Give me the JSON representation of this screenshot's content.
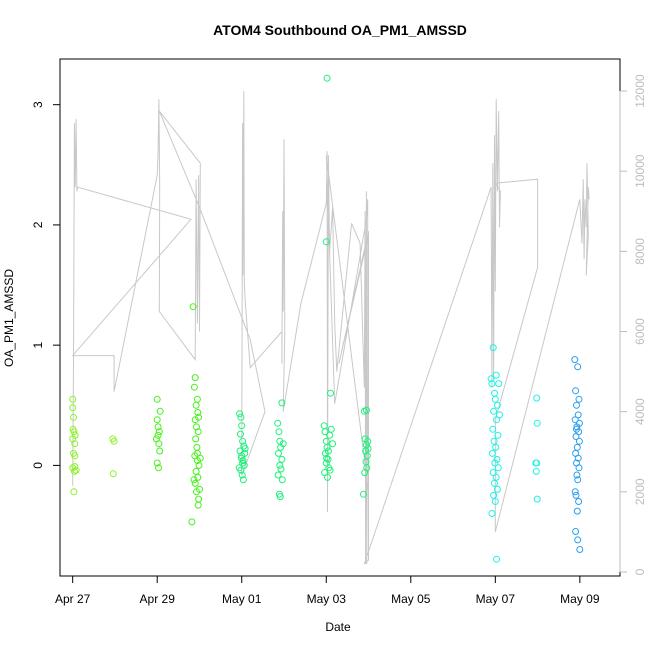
{
  "chart_data": {
    "type": "scatter",
    "title": "ATOM4 Southbound OA_PM1_AMSSD",
    "xlabel": "Date",
    "ylabel": "OA_PM1_AMSSD",
    "y2label": "",
    "xlim": [
      -0.3,
      12.95
    ],
    "ylim": [
      -0.92,
      3.38
    ],
    "y2lim": [
      -100,
      12800
    ],
    "x_ticks": [
      {
        "value": 0,
        "label": "Apr 27"
      },
      {
        "value": 2,
        "label": "Apr 29"
      },
      {
        "value": 4,
        "label": "May 01"
      },
      {
        "value": 6,
        "label": "May 03"
      },
      {
        "value": 8,
        "label": "May 05"
      },
      {
        "value": 10,
        "label": "May 07"
      },
      {
        "value": 12,
        "label": "May 09"
      }
    ],
    "y_ticks": [
      0,
      1,
      2,
      3
    ],
    "y2_ticks": [
      0,
      2000,
      4000,
      6000,
      8000,
      10000,
      12000
    ],
    "colors": {
      "green_light": "#8ef22a",
      "green": "#45f21a",
      "green_teal": "#1df27a",
      "cyan": "#1ef2e8",
      "blue": "#2a9ef2",
      "line": "#c8c8c8",
      "axis": "#000000",
      "axis_secondary": "#bdbdbd"
    },
    "series": [
      {
        "name": "OA_PM1_AMSSD",
        "type": "scatter",
        "axis": "left",
        "points": [
          [
            0.0,
            0.55
          ],
          [
            0.0,
            0.48
          ],
          [
            0.02,
            0.4
          ],
          [
            0.03,
            0.28
          ],
          [
            0.0,
            0.22
          ],
          [
            0.05,
            0.18
          ],
          [
            0.02,
            0.1
          ],
          [
            0.0,
            -0.02
          ],
          [
            0.04,
            -0.05
          ],
          [
            0.05,
            -0.01
          ],
          [
            0.03,
            -0.22
          ],
          [
            0.06,
            0.25
          ],
          [
            0.01,
            0.3
          ],
          [
            0.05,
            0.08
          ],
          [
            0.08,
            -0.04
          ],
          [
            0.95,
            0.22
          ],
          [
            0.98,
            0.2
          ],
          [
            0.96,
            -0.07
          ],
          [
            2.0,
            0.55
          ],
          [
            2.0,
            0.38
          ],
          [
            2.02,
            0.32
          ],
          [
            2.05,
            0.28
          ],
          [
            1.98,
            0.22
          ],
          [
            2.04,
            0.18
          ],
          [
            2.06,
            0.12
          ],
          [
            2.0,
            0.02
          ],
          [
            2.03,
            -0.02
          ],
          [
            2.07,
            0.45
          ],
          [
            2.02,
            0.25
          ],
          [
            2.85,
            1.32
          ],
          [
            2.9,
            0.73
          ],
          [
            2.88,
            0.65
          ],
          [
            2.95,
            0.55
          ],
          [
            2.92,
            0.5
          ],
          [
            2.96,
            0.44
          ],
          [
            2.98,
            0.4
          ],
          [
            2.9,
            0.38
          ],
          [
            2.93,
            0.32
          ],
          [
            2.97,
            0.28
          ],
          [
            2.91,
            0.22
          ],
          [
            2.94,
            0.15
          ],
          [
            2.89,
            0.08
          ],
          [
            2.95,
            0.04
          ],
          [
            2.99,
            0.0
          ],
          [
            2.92,
            -0.05
          ],
          [
            2.96,
            -0.1
          ],
          [
            2.9,
            -0.15
          ],
          [
            2.93,
            -0.22
          ],
          [
            2.98,
            -0.28
          ],
          [
            2.82,
            -0.47
          ],
          [
            2.97,
            -0.33
          ],
          [
            3.0,
            -0.2
          ],
          [
            2.95,
            0.1
          ],
          [
            2.87,
            -0.12
          ],
          [
            3.02,
            0.06
          ],
          [
            3.95,
            0.43
          ],
          [
            3.98,
            0.4
          ],
          [
            4.0,
            0.33
          ],
          [
            3.97,
            0.26
          ],
          [
            4.02,
            0.2
          ],
          [
            4.05,
            0.16
          ],
          [
            3.96,
            0.12
          ],
          [
            4.0,
            0.08
          ],
          [
            4.03,
            0.04
          ],
          [
            4.06,
            0.0
          ],
          [
            3.98,
            -0.04
          ],
          [
            4.01,
            -0.08
          ],
          [
            4.04,
            -0.12
          ],
          [
            3.99,
            0.06
          ],
          [
            4.07,
            0.1
          ],
          [
            4.02,
            0.02
          ],
          [
            3.94,
            -0.02
          ],
          [
            4.08,
            0.14
          ],
          [
            4.85,
            0.35
          ],
          [
            4.88,
            0.28
          ],
          [
            4.9,
            0.2
          ],
          [
            4.92,
            0.15
          ],
          [
            4.87,
            0.1
          ],
          [
            4.95,
            0.05
          ],
          [
            4.9,
            0.0
          ],
          [
            4.93,
            -0.03
          ],
          [
            4.86,
            -0.08
          ],
          [
            4.96,
            -0.12
          ],
          [
            4.89,
            -0.24
          ],
          [
            4.95,
            0.52
          ],
          [
            4.91,
            -0.26
          ],
          [
            4.98,
            0.18
          ],
          [
            5.95,
            0.33
          ],
          [
            5.97,
            0.28
          ],
          [
            6.0,
            0.2
          ],
          [
            6.02,
            0.15
          ],
          [
            5.98,
            0.1
          ],
          [
            6.04,
            0.05
          ],
          [
            6.0,
            0.02
          ],
          [
            6.06,
            -0.02
          ],
          [
            5.96,
            -0.06
          ],
          [
            6.03,
            -0.1
          ],
          [
            6.0,
            1.86
          ],
          [
            6.1,
            0.6
          ],
          [
            6.08,
            0.25
          ],
          [
            6.05,
            0.12
          ],
          [
            6.01,
            0.06
          ],
          [
            6.15,
            0.18
          ],
          [
            6.12,
            0.3
          ],
          [
            6.09,
            -0.04
          ],
          [
            6.02,
            3.22
          ],
          [
            6.9,
            0.45
          ],
          [
            6.92,
            0.22
          ],
          [
            6.95,
            0.17
          ],
          [
            6.93,
            0.12
          ],
          [
            6.97,
            0.08
          ],
          [
            6.94,
            0.03
          ],
          [
            6.96,
            -0.02
          ],
          [
            6.91,
            -0.06
          ],
          [
            6.98,
            0.2
          ],
          [
            6.88,
            -0.24
          ],
          [
            6.99,
            0.14
          ],
          [
            6.95,
            0.46
          ],
          [
            9.95,
            0.98
          ],
          [
            10.02,
            0.75
          ],
          [
            9.9,
            0.72
          ],
          [
            9.92,
            0.68
          ],
          [
            9.98,
            0.6
          ],
          [
            10.0,
            0.55
          ],
          [
            10.05,
            0.5
          ],
          [
            9.96,
            0.45
          ],
          [
            10.03,
            0.38
          ],
          [
            9.94,
            0.3
          ],
          [
            10.06,
            0.25
          ],
          [
            9.97,
            0.2
          ],
          [
            10.01,
            0.15
          ],
          [
            9.93,
            0.1
          ],
          [
            10.04,
            0.05
          ],
          [
            9.99,
            0.02
          ],
          [
            10.07,
            -0.02
          ],
          [
            9.95,
            -0.06
          ],
          [
            10.02,
            -0.1
          ],
          [
            9.98,
            -0.15
          ],
          [
            10.05,
            -0.2
          ],
          [
            9.96,
            -0.25
          ],
          [
            10.0,
            -0.3
          ],
          [
            9.92,
            -0.4
          ],
          [
            10.03,
            -0.78
          ],
          [
            10.08,
            0.68
          ],
          [
            10.1,
            0.42
          ],
          [
            10.98,
            0.56
          ],
          [
            10.99,
            0.35
          ],
          [
            10.98,
            0.02
          ],
          [
            10.97,
            -0.05
          ],
          [
            10.99,
            -0.28
          ],
          [
            10.96,
            0.02
          ],
          [
            11.88,
            0.88
          ],
          [
            11.95,
            0.82
          ],
          [
            11.9,
            0.62
          ],
          [
            11.98,
            0.55
          ],
          [
            11.92,
            0.5
          ],
          [
            11.96,
            0.42
          ],
          [
            11.89,
            0.38
          ],
          [
            11.93,
            0.32
          ],
          [
            11.97,
            0.28
          ],
          [
            11.91,
            0.24
          ],
          [
            11.99,
            0.2
          ],
          [
            11.94,
            0.15
          ],
          [
            11.9,
            0.1
          ],
          [
            11.96,
            0.06
          ],
          [
            11.92,
            0.02
          ],
          [
            11.98,
            -0.02
          ],
          [
            11.93,
            -0.08
          ],
          [
            11.95,
            -0.12
          ],
          [
            11.89,
            -0.22
          ],
          [
            11.91,
            -0.25
          ],
          [
            11.97,
            -0.3
          ],
          [
            11.94,
            -0.38
          ],
          [
            11.9,
            -0.55
          ],
          [
            11.95,
            -0.62
          ],
          [
            12.0,
            -0.7
          ],
          [
            11.92,
            0.3
          ],
          [
            11.99,
            0.35
          ]
        ]
      },
      {
        "name": "secondary",
        "type": "line",
        "axis": "right",
        "points": [
          [
            0.0,
            2150
          ],
          [
            0.02,
            5200
          ],
          [
            0.04,
            11200
          ],
          [
            0.06,
            9600
          ],
          [
            0.08,
            11300
          ],
          [
            0.1,
            9500
          ],
          [
            0.12,
            9600
          ],
          [
            2.8,
            8800
          ],
          [
            0.0,
            5400
          ],
          [
            0.98,
            5400
          ],
          [
            0.98,
            4500
          ],
          [
            2.0,
            9900
          ],
          [
            2.02,
            10500
          ],
          [
            2.04,
            11800
          ],
          [
            2.06,
            9600
          ],
          [
            2.05,
            6500
          ],
          [
            2.9,
            5300
          ],
          [
            2.92,
            9800
          ],
          [
            2.95,
            6200
          ],
          [
            2.98,
            9900
          ],
          [
            3.0,
            6000
          ],
          [
            3.02,
            10200
          ],
          [
            2.05,
            11500
          ],
          [
            3.0,
            9100
          ],
          [
            4.2,
            5800
          ],
          [
            4.55,
            4000
          ],
          [
            4.0,
            2400
          ],
          [
            4.02,
            11200
          ],
          [
            4.03,
            7400
          ],
          [
            4.05,
            12000
          ],
          [
            4.06,
            7200
          ],
          [
            4.08,
            6800
          ],
          [
            4.2,
            5100
          ],
          [
            4.95,
            6000
          ],
          [
            4.95,
            5200
          ],
          [
            4.97,
            9000
          ],
          [
            4.98,
            6500
          ],
          [
            5.0,
            10800
          ],
          [
            5.02,
            6000
          ],
          [
            4.98,
            4000
          ],
          [
            5.4,
            6700
          ],
          [
            6.0,
            9200
          ],
          [
            6.02,
            10500
          ],
          [
            6.03,
            1500
          ],
          [
            6.05,
            10400
          ],
          [
            6.08,
            8000
          ],
          [
            6.15,
            9100
          ],
          [
            6.2,
            6200
          ],
          [
            6.25,
            5000
          ],
          [
            6.6,
            8700
          ],
          [
            6.8,
            8200
          ],
          [
            6.9,
            4600
          ],
          [
            6.92,
            9000
          ],
          [
            6.93,
            200
          ],
          [
            6.95,
            9500
          ],
          [
            6.96,
            200
          ],
          [
            6.98,
            4800
          ],
          [
            6.98,
            9300
          ],
          [
            6.95,
            8800
          ],
          [
            6.2,
            4200
          ],
          [
            6.0,
            10400
          ],
          [
            7.0,
            2000
          ],
          [
            7.0,
            8400
          ],
          [
            6.3,
            5200
          ],
          [
            7.0,
            8500
          ],
          [
            7.0,
            8500
          ],
          [
            7.0,
            300
          ],
          [
            6.9,
            200
          ],
          [
            9.9,
            9600
          ],
          [
            9.92,
            4600
          ],
          [
            9.94,
            10200
          ],
          [
            9.96,
            4800
          ],
          [
            9.98,
            10900
          ],
          [
            10.0,
            7000
          ],
          [
            10.02,
            11800
          ],
          [
            10.05,
            9500
          ],
          [
            10.08,
            11500
          ],
          [
            10.1,
            8600
          ],
          [
            10.12,
            9500
          ],
          [
            10.0,
            9700
          ],
          [
            11.0,
            9800
          ],
          [
            11.0,
            7600
          ],
          [
            10.0,
            3800
          ],
          [
            10.0,
            1000
          ],
          [
            12.0,
            9300
          ],
          [
            12.05,
            8200
          ],
          [
            12.08,
            9800
          ],
          [
            12.1,
            7800
          ],
          [
            12.12,
            9300
          ],
          [
            12.15,
            8600
          ],
          [
            12.17,
            10200
          ],
          [
            12.2,
            8400
          ],
          [
            12.15,
            7400
          ],
          [
            12.2,
            9600
          ],
          [
            12.22,
            9300
          ]
        ]
      }
    ]
  }
}
